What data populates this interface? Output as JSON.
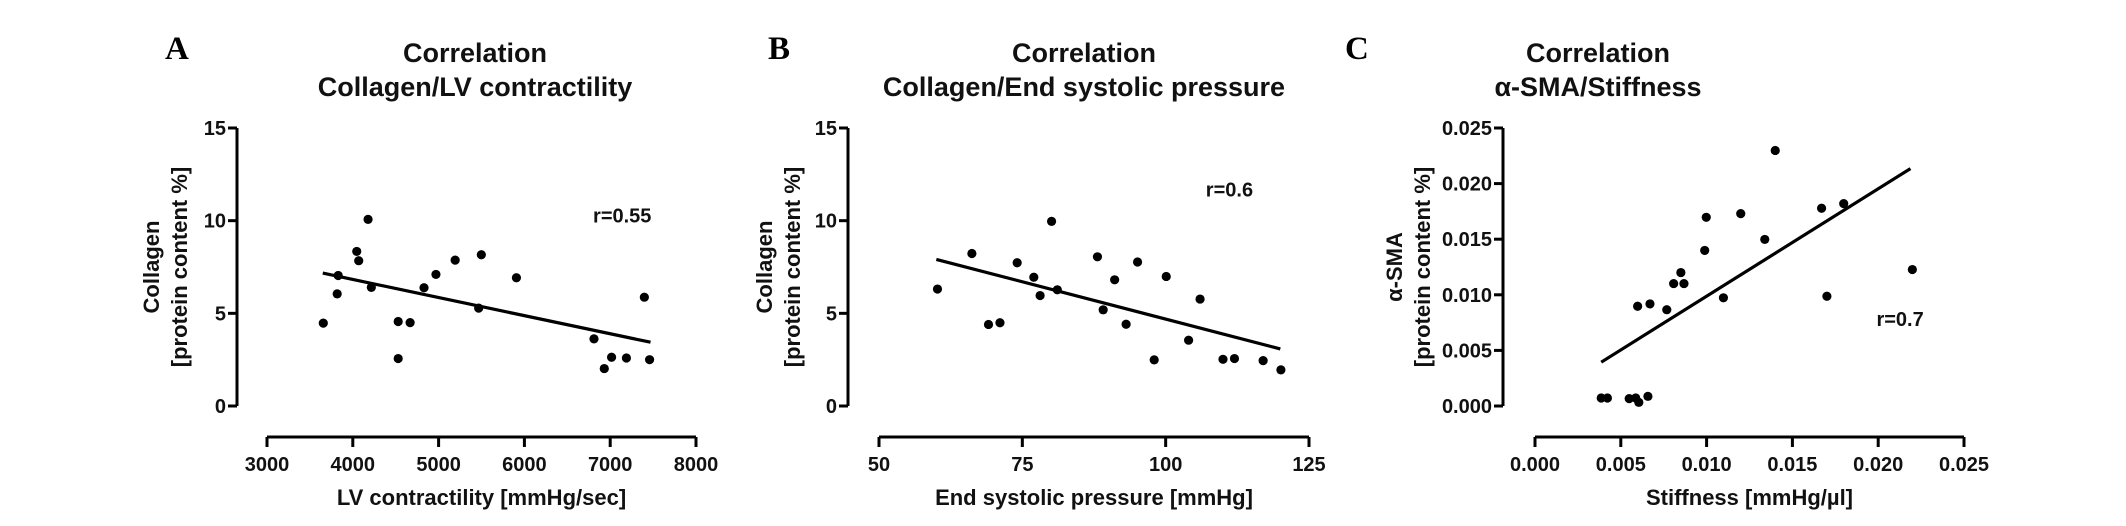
{
  "chart_data": [
    {
      "type": "scatter",
      "panel_letter": "A",
      "title": [
        "Correlation",
        "Collagen/LV contractility"
      ],
      "xlabel": "LV contractility [mmHg/sec]",
      "ylabel": [
        "Collagen",
        "[protein content %]"
      ],
      "xlim": [
        3000,
        8000
      ],
      "ylim": [
        0,
        15
      ],
      "xticks": [
        3000,
        4000,
        5000,
        6000,
        7000,
        8000
      ],
      "xtick_labels": [
        "3000",
        "4000",
        "5000",
        "6000",
        "7000",
        "8000"
      ],
      "yticks": [
        0,
        5,
        10,
        15
      ],
      "ytick_labels": [
        "0",
        "5",
        "10",
        "15"
      ],
      "annotation": {
        "text": "r=0.55",
        "x": 6800,
        "y": 9.9
      },
      "regression_line": [
        [
          3650,
          7.17
        ],
        [
          7470,
          3.44
        ]
      ],
      "points": [
        [
          3656,
          4.47
        ],
        [
          3818,
          6.05
        ],
        [
          3830,
          7.04
        ],
        [
          4046,
          8.34
        ],
        [
          4069,
          7.84
        ],
        [
          4178,
          10.07
        ],
        [
          4216,
          6.4
        ],
        [
          4529,
          4.56
        ],
        [
          4529,
          2.56
        ],
        [
          4668,
          4.5
        ],
        [
          4830,
          6.38
        ],
        [
          4969,
          7.1
        ],
        [
          5193,
          7.87
        ],
        [
          5467,
          5.28
        ],
        [
          5498,
          8.16
        ],
        [
          5907,
          6.92
        ],
        [
          6811,
          3.62
        ],
        [
          6931,
          2.02
        ],
        [
          7016,
          2.63
        ],
        [
          7189,
          2.59
        ],
        [
          7398,
          5.87
        ],
        [
          7459,
          2.5
        ]
      ],
      "grid": false,
      "marker_color": "#000000"
    },
    {
      "type": "scatter",
      "panel_letter": "B",
      "title": [
        "Correlation",
        "Collagen/End systolic pressure"
      ],
      "xlabel": "End systolic pressure [mmHg]",
      "ylabel": [
        "Collagen",
        "[protein content %]"
      ],
      "xlim": [
        50,
        125
      ],
      "ylim": [
        0,
        15
      ],
      "xticks": [
        50,
        75,
        100,
        125
      ],
      "xtick_labels": [
        "50",
        "75",
        "100",
        "125"
      ],
      "yticks": [
        0,
        5,
        10,
        15
      ],
      "ytick_labels": [
        "0",
        "5",
        "10",
        "15"
      ],
      "annotation": {
        "text": "r=0.6",
        "x": 107,
        "y": 11.3
      },
      "regression_line": [
        [
          60,
          7.91
        ],
        [
          120,
          3.08
        ]
      ],
      "points": [
        [
          60.2,
          6.31
        ],
        [
          66.2,
          8.23
        ],
        [
          69.1,
          4.4
        ],
        [
          71.1,
          4.49
        ],
        [
          74.1,
          7.73
        ],
        [
          77.0,
          6.95
        ],
        [
          78.1,
          5.96
        ],
        [
          80.1,
          9.96
        ],
        [
          81.1,
          6.27
        ],
        [
          88.1,
          8.05
        ],
        [
          89.1,
          5.19
        ],
        [
          91.1,
          6.81
        ],
        [
          93.1,
          4.41
        ],
        [
          95.1,
          7.77
        ],
        [
          98.0,
          2.49
        ],
        [
          100.1,
          6.99
        ],
        [
          104.0,
          3.55
        ],
        [
          106.0,
          5.77
        ],
        [
          110.0,
          2.52
        ],
        [
          112.0,
          2.56
        ],
        [
          117.0,
          2.45
        ],
        [
          120.1,
          1.95
        ]
      ],
      "grid": false,
      "marker_color": "#000000"
    },
    {
      "type": "scatter",
      "panel_letter": "C",
      "title": [
        "Correlation",
        "α-SMA/Stiffness"
      ],
      "xlabel": "Stiffness [mmHg/µl]",
      "ylabel": [
        "α-SMA",
        "[protein content %]"
      ],
      "xlim": [
        0,
        0.025
      ],
      "ylim": [
        0,
        0.025
      ],
      "xticks": [
        0,
        0.005,
        0.01,
        0.015,
        0.02,
        0.025
      ],
      "xtick_labels": [
        "0.000",
        "0.005",
        "0.010",
        "0.015",
        "0.020",
        "0.025"
      ],
      "yticks": [
        0,
        0.005,
        0.01,
        0.015,
        0.02,
        0.025
      ],
      "ytick_labels": [
        "0.000",
        "0.005",
        "0.010",
        "0.015",
        "0.020",
        "0.025"
      ],
      "annotation": {
        "text": "r=0.7",
        "x": 0.0199,
        "y": 0.0072
      },
      "regression_line": [
        [
          0.00386,
          0.00394
        ],
        [
          0.02188,
          0.02135
        ]
      ],
      "points": [
        [
          0.00386,
          0.00072
        ],
        [
          0.00422,
          0.00072
        ],
        [
          0.00549,
          0.00066
        ],
        [
          0.00587,
          0.00072
        ],
        [
          0.00605,
          0.00033
        ],
        [
          0.00658,
          0.00087
        ],
        [
          0.00598,
          0.00897
        ],
        [
          0.0067,
          0.00918
        ],
        [
          0.00768,
          0.00866
        ],
        [
          0.00808,
          0.01101
        ],
        [
          0.0085,
          0.012
        ],
        [
          0.00868,
          0.01101
        ],
        [
          0.00989,
          0.01399
        ],
        [
          0.00998,
          0.01697
        ],
        [
          0.01098,
          0.00973
        ],
        [
          0.01199,
          0.0173
        ],
        [
          0.01339,
          0.01498
        ],
        [
          0.014,
          0.02298
        ],
        [
          0.0167,
          0.01778
        ],
        [
          0.01701,
          0.00987
        ],
        [
          0.01799,
          0.0182
        ],
        [
          0.02199,
          0.01227
        ]
      ],
      "grid": false,
      "marker_color": "#000000"
    }
  ]
}
